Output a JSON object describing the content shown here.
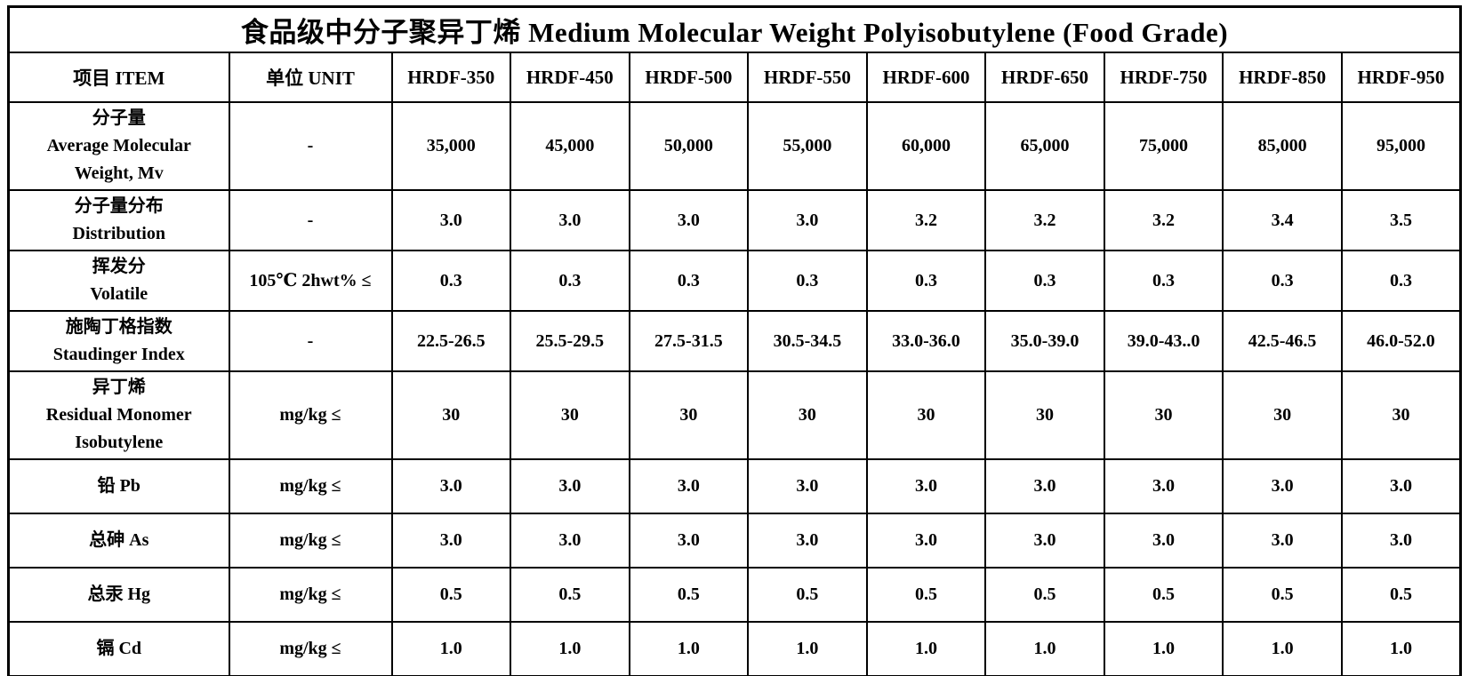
{
  "page": {
    "title": "食品级中分子聚异丁烯 Medium Molecular Weight Polyisobutylene (Food Grade)"
  },
  "colors": {
    "text": "#000000",
    "border": "#000000",
    "background": "#ffffff"
  },
  "table": {
    "item_header": "项目 ITEM",
    "unit_header": "单位 UNIT",
    "grade_headers": [
      "HRDF-350",
      "HRDF-450",
      "HRDF-500",
      "HRDF-550",
      "HRDF-600",
      "HRDF-650",
      "HRDF-750",
      "HRDF-850",
      "HRDF-950"
    ],
    "rows": [
      {
        "item": "分子量\nAverage Molecular\nWeight, Mv",
        "unit": "-",
        "values": [
          "35,000",
          "45,000",
          "50,000",
          "55,000",
          "60,000",
          "65,000",
          "75,000",
          "85,000",
          "95,000"
        ]
      },
      {
        "item": "分子量分布\nDistribution",
        "unit": "-",
        "values": [
          "3.0",
          "3.0",
          "3.0",
          "3.0",
          "3.2",
          "3.2",
          "3.2",
          "3.4",
          "3.5"
        ]
      },
      {
        "item": "挥发分\nVolatile",
        "unit": "105℃ 2hwt% ≤",
        "values": [
          "0.3",
          "0.3",
          "0.3",
          "0.3",
          "0.3",
          "0.3",
          "0.3",
          "0.3",
          "0.3"
        ]
      },
      {
        "item": "施陶丁格指数\nStaudinger Index",
        "unit": "-",
        "values": [
          "22.5-26.5",
          "25.5-29.5",
          "27.5-31.5",
          "30.5-34.5",
          "33.0-36.0",
          "35.0-39.0",
          "39.0-43..0",
          "42.5-46.5",
          "46.0-52.0"
        ]
      },
      {
        "item": "异丁烯\nResidual Monomer\nIsobutylene",
        "unit": "mg/kg ≤",
        "values": [
          "30",
          "30",
          "30",
          "30",
          "30",
          "30",
          "30",
          "30",
          "30"
        ]
      },
      {
        "item": "铅 Pb",
        "unit": "mg/kg ≤",
        "values": [
          "3.0",
          "3.0",
          "3.0",
          "3.0",
          "3.0",
          "3.0",
          "3.0",
          "3.0",
          "3.0"
        ]
      },
      {
        "item": "总砷 As",
        "unit": "mg/kg ≤",
        "values": [
          "3.0",
          "3.0",
          "3.0",
          "3.0",
          "3.0",
          "3.0",
          "3.0",
          "3.0",
          "3.0"
        ]
      },
      {
        "item": "总汞 Hg",
        "unit": "mg/kg ≤",
        "values": [
          "0.5",
          "0.5",
          "0.5",
          "0.5",
          "0.5",
          "0.5",
          "0.5",
          "0.5",
          "0.5"
        ]
      },
      {
        "item": "镉 Cd",
        "unit": "mg/kg ≤",
        "values": [
          "1.0",
          "1.0",
          "1.0",
          "1.0",
          "1.0",
          "1.0",
          "1.0",
          "1.0",
          "1.0"
        ]
      }
    ]
  }
}
